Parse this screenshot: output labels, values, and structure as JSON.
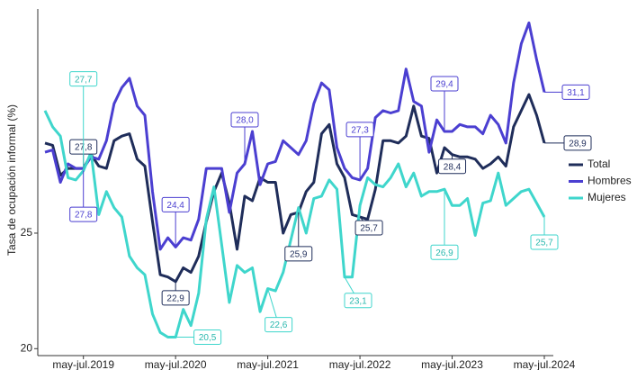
{
  "chart_data": {
    "type": "line",
    "y_label": "Tasa de ocupación informal (%)",
    "categories": [
      null,
      null,
      null,
      null,
      null,
      "may-jul.2019",
      null,
      null,
      null,
      null,
      null,
      null,
      null,
      null,
      null,
      null,
      null,
      "may-jul.2020",
      null,
      null,
      null,
      null,
      null,
      null,
      null,
      null,
      null,
      null,
      null,
      "may-jul.2021",
      null,
      null,
      null,
      null,
      null,
      null,
      null,
      null,
      null,
      null,
      null,
      "may-jul.2022",
      null,
      null,
      null,
      null,
      null,
      null,
      null,
      null,
      null,
      null,
      null,
      "may-jul.2023",
      null,
      null,
      null,
      null,
      null,
      null,
      null,
      null,
      null,
      null,
      null,
      "may-jul.2024"
    ],
    "ylim": [
      19.7,
      34.7
    ],
    "yticks": [
      20,
      25
    ],
    "legend": "right",
    "series": [
      {
        "name": "Total",
        "color": "#1f2d5a",
        "values": [
          28.9,
          28.8,
          27.5,
          27.8,
          27.8,
          27.8,
          28.4,
          27.9,
          27.8,
          29.0,
          29.2,
          29.3,
          28.2,
          27.9,
          25.5,
          23.2,
          23.1,
          22.9,
          23.5,
          23.3,
          24.0,
          25.5,
          26.8,
          27.6,
          26.3,
          24.3,
          26.6,
          26.4,
          27.4,
          27.2,
          27.2,
          25.0,
          25.8,
          25.9,
          26.8,
          27.2,
          29.3,
          29.7,
          28.0,
          27.4,
          25.8,
          25.7,
          25.6,
          26.9,
          29.0,
          29.0,
          28.9,
          29.2,
          30.5,
          29.2,
          29.1,
          27.6,
          28.7,
          28.4,
          28.3,
          28.3,
          28.2,
          27.8,
          28.0,
          28.3,
          27.9,
          29.6,
          30.3,
          31.0,
          30.1,
          28.9
        ],
        "value_labels": [
          null,
          null,
          null,
          null,
          null,
          "27,8",
          null,
          null,
          null,
          null,
          null,
          null,
          null,
          null,
          null,
          null,
          null,
          "22,9",
          null,
          null,
          null,
          null,
          null,
          null,
          null,
          null,
          null,
          null,
          null,
          null,
          null,
          null,
          null,
          "25,9",
          null,
          null,
          null,
          null,
          null,
          null,
          null,
          "25,7",
          null,
          null,
          null,
          null,
          null,
          null,
          null,
          null,
          null,
          null,
          null,
          "28,4",
          null,
          null,
          null,
          null,
          null,
          null,
          null,
          null,
          null,
          null,
          null,
          "28,9"
        ]
      },
      {
        "name": "Hombres",
        "color": "#4b3fd1",
        "values": [
          28.5,
          28.6,
          27.2,
          28.0,
          27.8,
          27.8,
          28.3,
          28.2,
          29.0,
          30.6,
          31.3,
          31.7,
          30.5,
          30.1,
          26.8,
          24.3,
          24.8,
          24.4,
          24.8,
          24.7,
          25.6,
          27.8,
          27.8,
          27.8,
          25.9,
          27.6,
          28.0,
          29.4,
          27.1,
          28.0,
          28.1,
          29.0,
          28.7,
          28.4,
          29.0,
          30.6,
          31.5,
          31.2,
          28.7,
          27.8,
          27.4,
          27.3,
          27.8,
          30.0,
          30.3,
          30.2,
          30.3,
          32.1,
          30.7,
          30.5,
          28.5,
          29.9,
          29.4,
          29.4,
          29.7,
          29.6,
          29.6,
          29.3,
          30.1,
          29.7,
          28.9,
          31.5,
          33.2,
          34.1,
          32.5,
          31.1
        ],
        "value_labels": [
          null,
          null,
          null,
          null,
          null,
          "27,8",
          null,
          null,
          null,
          null,
          null,
          null,
          null,
          null,
          null,
          null,
          null,
          "24,4",
          null,
          null,
          null,
          null,
          null,
          null,
          null,
          null,
          "28,0",
          null,
          null,
          null,
          null,
          null,
          null,
          null,
          null,
          null,
          null,
          null,
          null,
          null,
          null,
          "27,3",
          null,
          null,
          null,
          null,
          null,
          null,
          null,
          null,
          null,
          null,
          "29,4",
          null,
          null,
          null,
          null,
          null,
          null,
          null,
          null,
          null,
          null,
          null,
          null,
          "31,1"
        ]
      },
      {
        "name": "Mujeres",
        "color": "#3fd6cc",
        "values": [
          30.3,
          29.6,
          29.2,
          27.4,
          27.3,
          27.7,
          28.5,
          25.8,
          26.8,
          26.1,
          25.7,
          24.0,
          23.5,
          23.2,
          21.5,
          20.7,
          20.5,
          20.5,
          21.7,
          21.0,
          22.4,
          25.6,
          27.0,
          24.5,
          22.0,
          23.6,
          23.3,
          23.5,
          21.6,
          22.6,
          22.5,
          23.3,
          24.7,
          26.1,
          25.0,
          26.5,
          26.6,
          27.3,
          26.9,
          23.1,
          23.1,
          26.2,
          27.4,
          27.1,
          27.0,
          27.4,
          28.0,
          27.0,
          27.6,
          26.6,
          26.8,
          26.8,
          26.9,
          26.2,
          26.2,
          26.5,
          24.9,
          26.3,
          26.4,
          27.6,
          26.2,
          26.5,
          26.8,
          26.9,
          26.3,
          25.7
        ],
        "value_labels": [
          null,
          null,
          null,
          null,
          null,
          "27,7",
          null,
          null,
          null,
          null,
          null,
          null,
          null,
          null,
          null,
          null,
          "20,5",
          null,
          null,
          null,
          null,
          null,
          null,
          null,
          null,
          null,
          null,
          null,
          null,
          "22,6",
          null,
          null,
          null,
          null,
          null,
          null,
          null,
          null,
          null,
          "23,1",
          null,
          null,
          null,
          null,
          null,
          null,
          null,
          null,
          null,
          null,
          null,
          null,
          "26,9",
          null,
          null,
          null,
          null,
          null,
          null,
          null,
          null,
          null,
          null,
          null,
          null,
          "25,7"
        ]
      }
    ]
  }
}
